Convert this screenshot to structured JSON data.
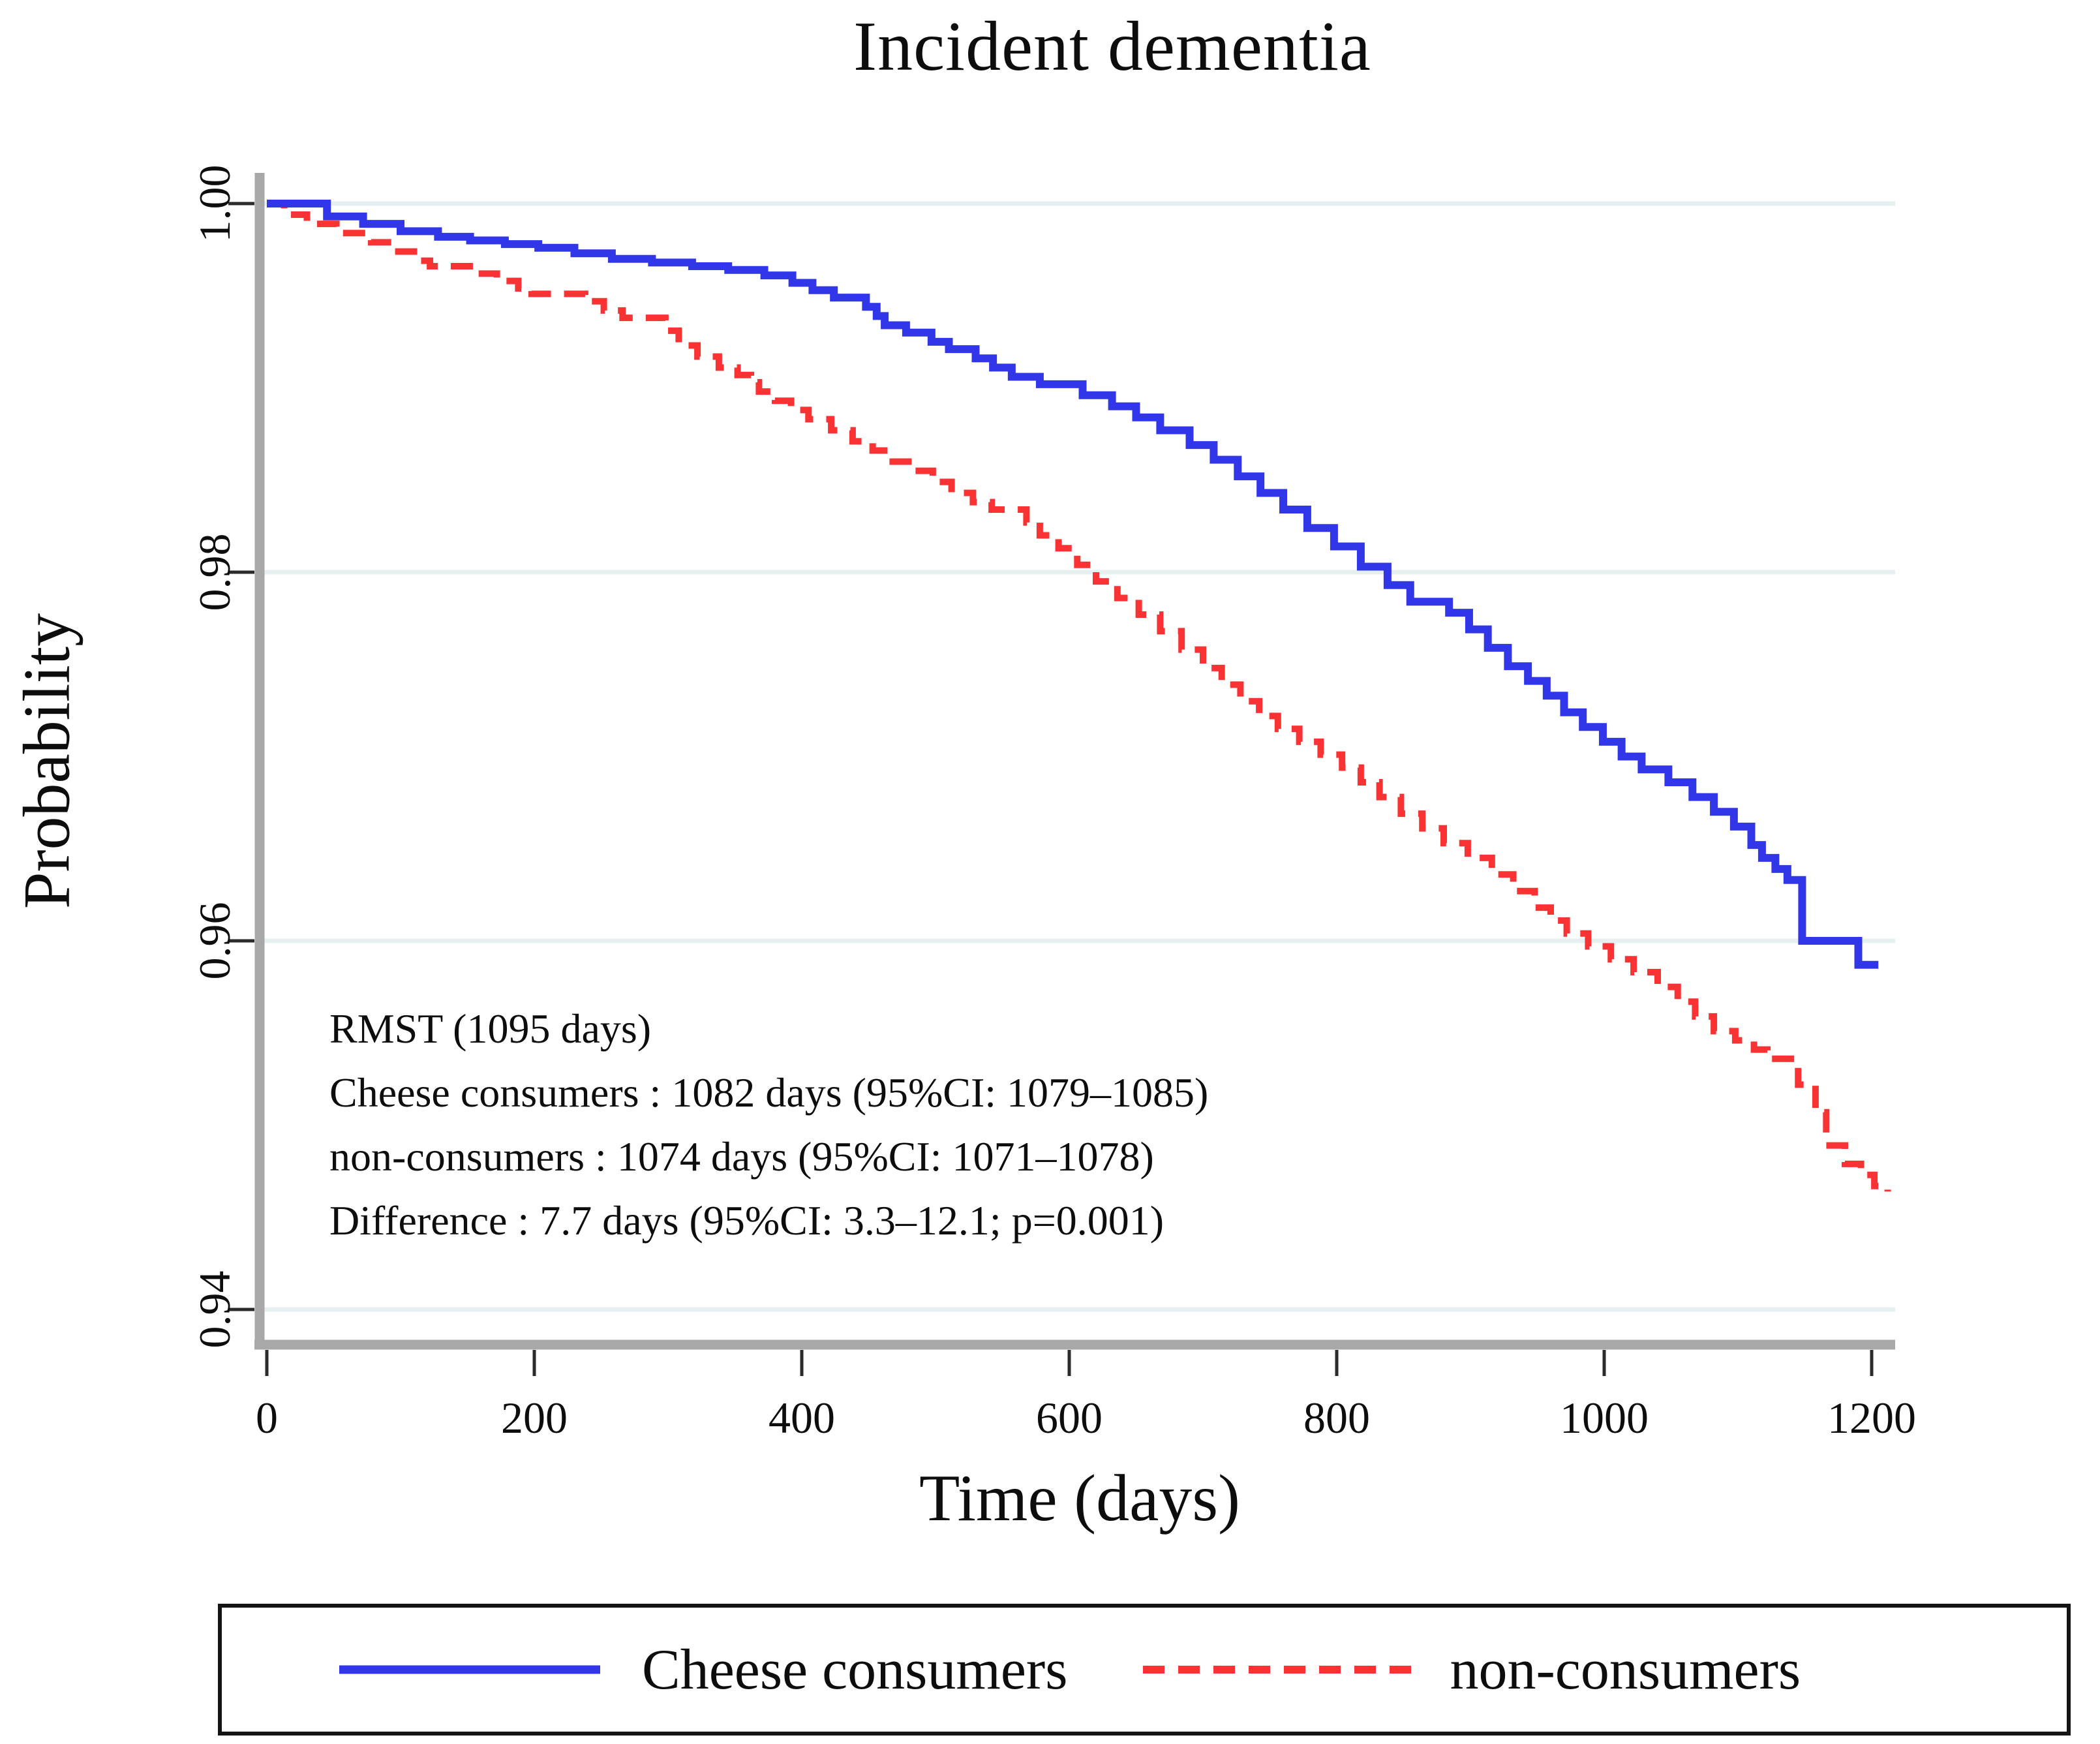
{
  "title": "Incident dementia",
  "colors": {
    "consumers_line": "#3137e8",
    "non_consumers_line": "#f93333",
    "gridline": "#e7f0f1",
    "axis_line": "#a8a8a8",
    "tick_mark": "#2b2b2b",
    "text": "#0d0d0d",
    "legend_border": "#141414",
    "background": "#ffffff"
  },
  "annotation": {
    "line1": "RMST (1095 days)",
    "line2": "Cheese consumers : 1082 days (95%CI: 1079–1085)",
    "line3": "non-consumers : 1074 days (95%CI: 1071–1078)",
    "line4": "Difference : 7.7 days (95%CI: 3.3–12.1; p=0.001)"
  },
  "legend": {
    "items": [
      {
        "label": "Cheese consumers",
        "style": "solid"
      },
      {
        "label": "non-consumers",
        "style": "dashed"
      }
    ]
  },
  "chart_data": {
    "type": "line",
    "subtype": "kaplan-meier-step",
    "title": "Incident dementia",
    "xlabel": "Time (days)",
    "ylabel": "Probability",
    "xlim": [
      0,
      1225
    ],
    "ylim": [
      0.938,
      1.002
    ],
    "grid": "horizontal",
    "legend_position": "bottom-box",
    "x_ticks": {
      "values": [
        0,
        200,
        400,
        600,
        800,
        1000,
        1200
      ],
      "labels": [
        "0",
        "200",
        "400",
        "600",
        "800",
        "1000",
        "1200"
      ]
    },
    "y_ticks": {
      "values": [
        1.0,
        0.98,
        0.96,
        0.94
      ],
      "labels": [
        "1.00",
        "0.98",
        "0.96",
        "0.94"
      ]
    },
    "series": [
      {
        "name": "Cheese consumers",
        "style": "solid",
        "points": [
          [
            0,
            1.0
          ],
          [
            45,
            0.9993
          ],
          [
            72,
            0.9989
          ],
          [
            100,
            0.9985
          ],
          [
            128,
            0.9982
          ],
          [
            152,
            0.998
          ],
          [
            178,
            0.9978
          ],
          [
            203,
            0.9976
          ],
          [
            230,
            0.9973
          ],
          [
            258,
            0.997
          ],
          [
            288,
            0.9968
          ],
          [
            318,
            0.9966
          ],
          [
            345,
            0.9964
          ],
          [
            372,
            0.9961
          ],
          [
            393,
            0.9957
          ],
          [
            408,
            0.9953
          ],
          [
            424,
            0.9949
          ],
          [
            448,
            0.9944
          ],
          [
            456,
            0.9939
          ],
          [
            462,
            0.9934
          ],
          [
            478,
            0.993
          ],
          [
            497,
            0.9925
          ],
          [
            510,
            0.9921
          ],
          [
            530,
            0.9916
          ],
          [
            543,
            0.9911
          ],
          [
            557,
            0.9906
          ],
          [
            578,
            0.9902
          ],
          [
            610,
            0.9896
          ],
          [
            632,
            0.989
          ],
          [
            650,
            0.9884
          ],
          [
            668,
            0.9877
          ],
          [
            690,
            0.9869
          ],
          [
            708,
            0.9861
          ],
          [
            726,
            0.9852
          ],
          [
            743,
            0.9843
          ],
          [
            760,
            0.9834
          ],
          [
            778,
            0.9824
          ],
          [
            798,
            0.9814
          ],
          [
            818,
            0.9803
          ],
          [
            838,
            0.9793
          ],
          [
            855,
            0.9784
          ],
          [
            884,
            0.9778
          ],
          [
            899,
            0.9769
          ],
          [
            913,
            0.9759
          ],
          [
            928,
            0.9749
          ],
          [
            943,
            0.9741
          ],
          [
            957,
            0.9733
          ],
          [
            970,
            0.9724
          ],
          [
            984,
            0.9716
          ],
          [
            999,
            0.9708
          ],
          [
            1013,
            0.97
          ],
          [
            1028,
            0.9693
          ],
          [
            1048,
            0.9686
          ],
          [
            1066,
            0.9678
          ],
          [
            1082,
            0.967
          ],
          [
            1097,
            0.9662
          ],
          [
            1110,
            0.9652
          ],
          [
            1118,
            0.9645
          ],
          [
            1128,
            0.9639
          ],
          [
            1137,
            0.9633
          ],
          [
            1148,
            0.96
          ],
          [
            1190,
            0.9587
          ],
          [
            1205,
            0.9587
          ]
        ]
      },
      {
        "name": "non-consumers",
        "style": "dashed",
        "points": [
          [
            0,
            1.0
          ],
          [
            13,
            0.9994
          ],
          [
            30,
            0.9989
          ],
          [
            52,
            0.9984
          ],
          [
            78,
            0.9979
          ],
          [
            95,
            0.9974
          ],
          [
            110,
            0.9969
          ],
          [
            122,
            0.9966
          ],
          [
            158,
            0.9962
          ],
          [
            172,
            0.9958
          ],
          [
            188,
            0.9954
          ],
          [
            198,
            0.9951
          ],
          [
            238,
            0.9947
          ],
          [
            252,
            0.9942
          ],
          [
            266,
            0.9938
          ],
          [
            298,
            0.9931
          ],
          [
            308,
            0.9923
          ],
          [
            322,
            0.9917
          ],
          [
            338,
            0.9911
          ],
          [
            352,
            0.9907
          ],
          [
            362,
            0.9903
          ],
          [
            368,
            0.9898
          ],
          [
            380,
            0.9893
          ],
          [
            392,
            0.9888
          ],
          [
            405,
            0.9883
          ],
          [
            422,
            0.9877
          ],
          [
            438,
            0.9871
          ],
          [
            453,
            0.9866
          ],
          [
            468,
            0.986
          ],
          [
            483,
            0.9855
          ],
          [
            498,
            0.9849
          ],
          [
            512,
            0.9843
          ],
          [
            528,
            0.9838
          ],
          [
            542,
            0.9834
          ],
          [
            568,
            0.9827
          ],
          [
            578,
            0.982
          ],
          [
            592,
            0.9813
          ],
          [
            606,
            0.9804
          ],
          [
            620,
            0.9795
          ],
          [
            636,
            0.9786
          ],
          [
            652,
            0.9777
          ],
          [
            668,
            0.9768
          ],
          [
            684,
            0.9758
          ],
          [
            700,
            0.9748
          ],
          [
            714,
            0.9739
          ],
          [
            728,
            0.973
          ],
          [
            742,
            0.9722
          ],
          [
            756,
            0.9715
          ],
          [
            772,
            0.9708
          ],
          [
            788,
            0.9701
          ],
          [
            804,
            0.9694
          ],
          [
            818,
            0.9686
          ],
          [
            832,
            0.9678
          ],
          [
            848,
            0.9669
          ],
          [
            864,
            0.9661
          ],
          [
            880,
            0.9653
          ],
          [
            898,
            0.9645
          ],
          [
            916,
            0.9636
          ],
          [
            932,
            0.9627
          ],
          [
            948,
            0.9618
          ],
          [
            960,
            0.9611
          ],
          [
            972,
            0.9604
          ],
          [
            988,
            0.9597
          ],
          [
            1005,
            0.959
          ],
          [
            1022,
            0.9583
          ],
          [
            1040,
            0.9575
          ],
          [
            1055,
            0.9567
          ],
          [
            1068,
            0.9559
          ],
          [
            1082,
            0.9551
          ],
          [
            1098,
            0.9546
          ],
          [
            1112,
            0.9541
          ],
          [
            1122,
            0.9536
          ],
          [
            1145,
            0.9522
          ],
          [
            1158,
            0.9507
          ],
          [
            1166,
            0.9489
          ],
          [
            1180,
            0.9479
          ],
          [
            1192,
            0.9473
          ],
          [
            1202,
            0.9467
          ],
          [
            1212,
            0.9464
          ]
        ]
      }
    ],
    "rmst_annotation": {
      "window_days": 1095,
      "cheese_consumers_days": 1082,
      "cheese_consumers_ci": [
        1079,
        1085
      ],
      "non_consumers_days": 1074,
      "non_consumers_ci": [
        1071,
        1078
      ],
      "difference_days": 7.7,
      "difference_ci": [
        3.3,
        12.1
      ],
      "p_value": 0.001
    }
  }
}
